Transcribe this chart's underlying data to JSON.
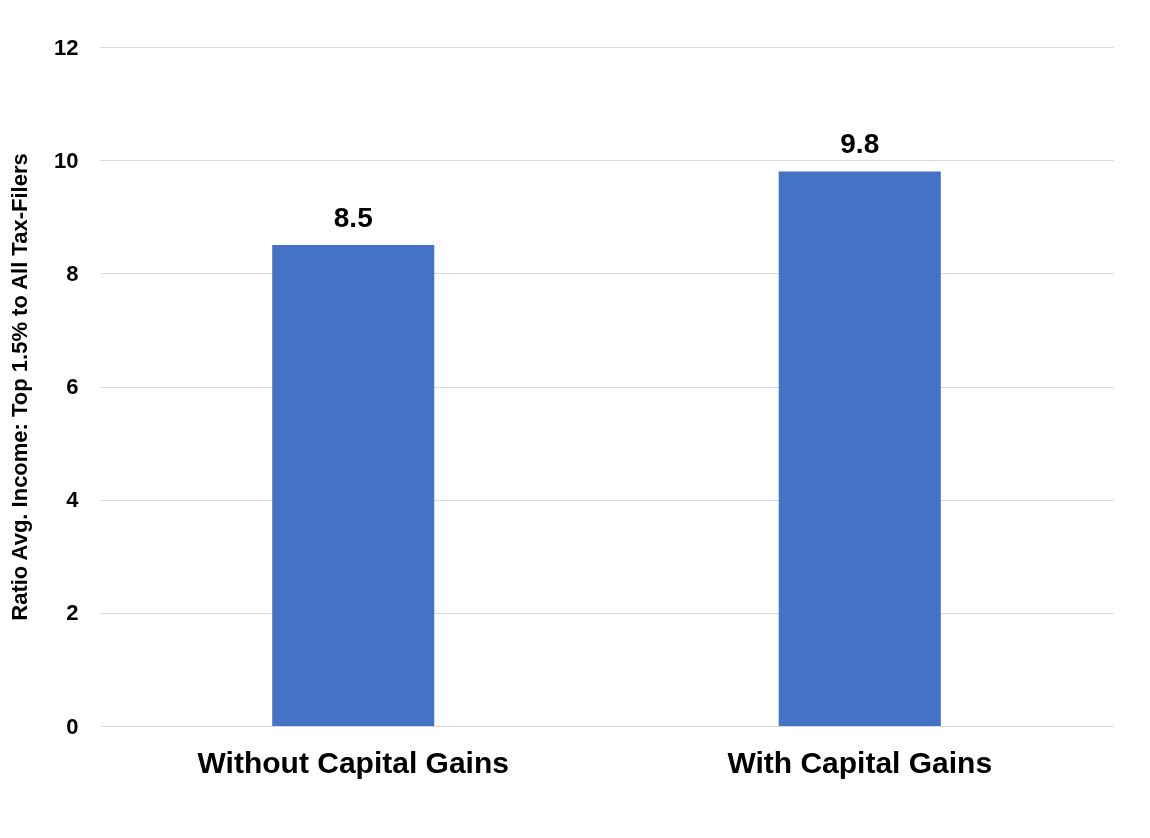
{
  "chart_data": {
    "type": "bar",
    "ylabel": "Ratio Avg. Income: Top 1.5% to All Tax-Filers",
    "categories": [
      "Without Capital Gains",
      "With Capital Gains"
    ],
    "values": [
      8.5,
      9.8
    ],
    "color": "#4472c4",
    "ylim": [
      0,
      12
    ],
    "yticks": [
      0,
      2,
      4,
      6,
      8,
      10,
      12
    ],
    "grid": "y",
    "data_labels": true
  }
}
